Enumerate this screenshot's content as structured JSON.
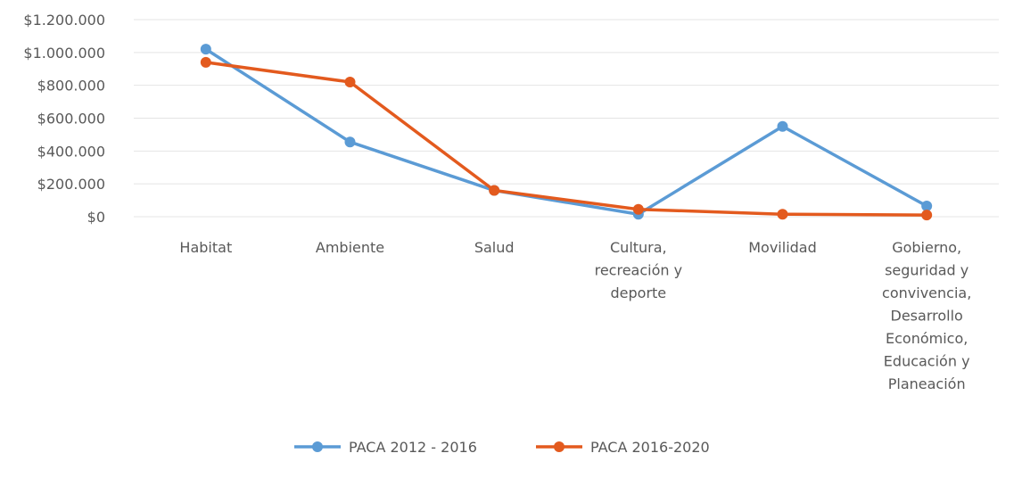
{
  "chart_data": {
    "type": "line",
    "categories": [
      [
        "Habitat"
      ],
      [
        "Ambiente"
      ],
      [
        "Salud"
      ],
      [
        "Cultura,",
        "recreación y",
        "deporte"
      ],
      [
        "Movilidad"
      ],
      [
        "Gobierno,",
        "seguridad y",
        "convivencia,",
        "Desarrollo",
        "Económico,",
        "Educación y",
        "Planeación"
      ]
    ],
    "series": [
      {
        "name": "PACA 2012 - 2016",
        "color": "#5B9BD5",
        "values": [
          1020000,
          455000,
          160000,
          15000,
          550000,
          65000
        ]
      },
      {
        "name": "PACA 2016-2020",
        "color": "#E35A1E",
        "values": [
          940000,
          820000,
          160000,
          45000,
          15000,
          10000
        ]
      }
    ],
    "y_ticks": [
      "$0",
      "$200.000",
      "$400.000",
      "$600.000",
      "$800.000",
      "$1.000.000",
      "$1.200.000"
    ],
    "ylim": [
      0,
      1200000
    ],
    "grid": true,
    "legend_position": "bottom"
  }
}
